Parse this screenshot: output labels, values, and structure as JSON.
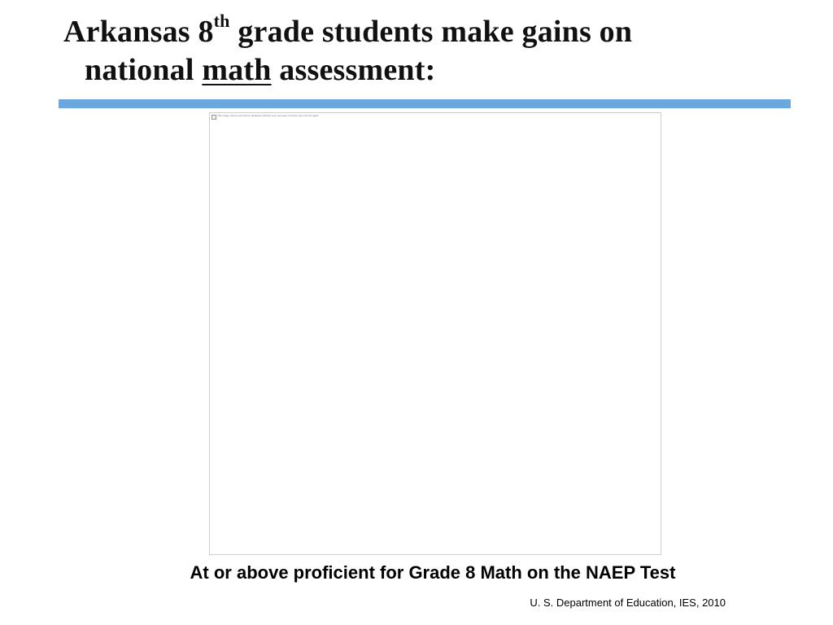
{
  "slide": {
    "title": {
      "part1": "Arkansas 8",
      "superscript": "th",
      "part2": " grade students make gains on",
      "line2_before": "national ",
      "line2_underlined": "math",
      "line2_after": " assessment:"
    },
    "rule_color": "#6ba7dc",
    "image": {
      "alt_text": "This image cannot currently be displayed. Restart your computer, and then open the file again."
    },
    "caption": "At or above proficient for Grade 8 Math on the NAEP Test",
    "source": "U. S. Department of Education, IES, 2010"
  }
}
